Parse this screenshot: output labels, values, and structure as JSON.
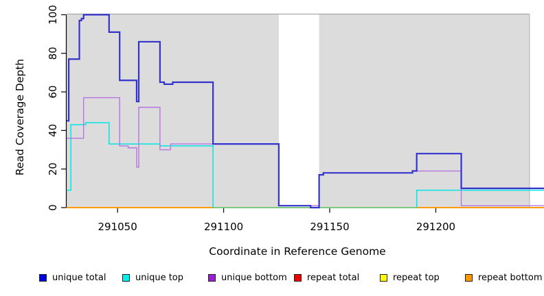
{
  "chart_data": {
    "type": "line",
    "subtype": "step-after-coverage",
    "title": "",
    "xlabel": "Coordinate in Reference Genome",
    "ylabel": "Read Coverage Depth",
    "xlim": [
      291026,
      291251
    ],
    "ylim": [
      0,
      100
    ],
    "x_ticks": [
      "291050",
      "291100",
      "291150",
      "291200"
    ],
    "x_tick_values": [
      291050,
      291100,
      291150,
      291200
    ],
    "y_ticks": [
      "0",
      "20",
      "40",
      "60",
      "80",
      "100"
    ],
    "y_tick_values": [
      0,
      20,
      40,
      60,
      80,
      100
    ],
    "grid": "off",
    "legend_position": "bottom",
    "panel_background": "#dcdcdc",
    "background_regions": [
      {
        "name": "gray-band-left",
        "from": 291026,
        "to": 291126
      },
      {
        "name": "gray-band-right",
        "from": 291145,
        "to": 291244
      }
    ],
    "gap_region": {
      "name": "white-gap",
      "from": 291126,
      "to": 291145
    },
    "series": [
      {
        "name": "unique total",
        "color": "#3333cc",
        "width": 2.2,
        "points": [
          [
            291026,
            45
          ],
          [
            291027,
            77
          ],
          [
            291032,
            97
          ],
          [
            291033,
            98
          ],
          [
            291034,
            100
          ],
          [
            291046,
            91
          ],
          [
            291051,
            66
          ],
          [
            291059,
            55
          ],
          [
            291060,
            86
          ],
          [
            291070,
            65
          ],
          [
            291072,
            64
          ],
          [
            291076,
            65
          ],
          [
            291095,
            33
          ],
          [
            291126,
            1
          ],
          [
            291141,
            0
          ],
          [
            291145,
            17
          ],
          [
            291147,
            18
          ],
          [
            291189,
            19
          ],
          [
            291191,
            28
          ],
          [
            291212,
            10
          ],
          [
            291251,
            10
          ]
        ]
      },
      {
        "name": "unique top",
        "color": "#00e6e6",
        "width": 1.5,
        "points": [
          [
            291026,
            9
          ],
          [
            291028,
            43
          ],
          [
            291035,
            44
          ],
          [
            291046,
            33
          ],
          [
            291070,
            32
          ],
          [
            291095,
            0
          ],
          [
            291191,
            9
          ],
          [
            291251,
            9
          ]
        ]
      },
      {
        "name": "unique bottom",
        "color": "#b673e1",
        "width": 1.4,
        "points": [
          [
            291026,
            36
          ],
          [
            291034,
            57
          ],
          [
            291051,
            32
          ],
          [
            291055,
            31
          ],
          [
            291059,
            21
          ],
          [
            291060,
            52
          ],
          [
            291070,
            30
          ],
          [
            291075,
            33
          ],
          [
            291095,
            33
          ],
          [
            291126,
            1
          ],
          [
            291145,
            17
          ],
          [
            291147,
            18
          ],
          [
            291189,
            19
          ],
          [
            291212,
            1
          ],
          [
            291251,
            1
          ]
        ]
      },
      {
        "name": "repeat total",
        "color": "#dd0000",
        "width": 1.4,
        "points": [
          [
            291026,
            0
          ],
          [
            291251,
            0
          ]
        ]
      },
      {
        "name": "repeat top",
        "color": "#f2f200",
        "width": 1.4,
        "points": [
          [
            291026,
            0
          ],
          [
            291251,
            0
          ]
        ]
      },
      {
        "name": "repeat bottom",
        "color": "#ff9a00",
        "width": 1.9,
        "points": [
          [
            291026,
            0
          ],
          [
            291251,
            0
          ]
        ]
      }
    ],
    "overlays": [
      {
        "name": "cyan-over-yellow-blend",
        "color": "#7cc87c",
        "width": 1.9,
        "y": 0,
        "from": 291095,
        "to": 291191
      }
    ],
    "draw_order": [
      3,
      4,
      5,
      1,
      2,
      0
    ]
  },
  "legend": {
    "items": [
      {
        "label": "unique total",
        "color": "#0000dd"
      },
      {
        "label": "unique top",
        "color": "#00eeee"
      },
      {
        "label": "unique bottom",
        "color": "#9a1ed6"
      },
      {
        "label": "repeat total",
        "color": "#ee0000"
      },
      {
        "label": "repeat top",
        "color": "#ffff00"
      },
      {
        "label": "repeat bottom",
        "color": "#ff9800"
      }
    ]
  }
}
